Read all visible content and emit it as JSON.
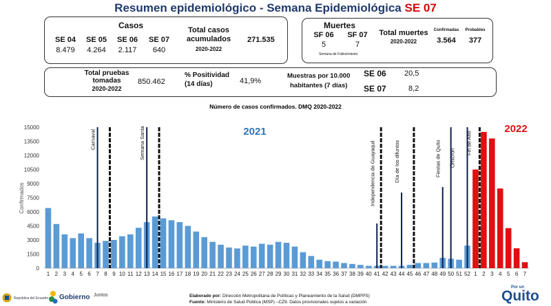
{
  "header": {
    "title_prefix": "Resumen epidemiológico - Semana Epidemiológica ",
    "title_week": "SE 07"
  },
  "cases": {
    "heading": "Casos",
    "weeks": [
      {
        "label": "SE 04",
        "value": "8.479"
      },
      {
        "label": "SE 05",
        "value": "4.264"
      },
      {
        "label": "SE 06",
        "value": "2.117"
      },
      {
        "label": "SE 07",
        "value": "640"
      }
    ],
    "total_label_1": "Total casos",
    "total_label_2": "acumulados",
    "total_period": "2020-2022",
    "total_value": "271.535"
  },
  "deaths": {
    "heading": "Muertes",
    "weeks": [
      {
        "label": "SF 06",
        "value": "5"
      },
      {
        "label": "SF 07",
        "value": "7"
      }
    ],
    "note": "Semana de Fallecimiento",
    "total_label": "Total muertes",
    "total_period": "2020-2022",
    "confirmed_label": "Confirmadas",
    "confirmed_value": "3.564",
    "probable_label": "Probables",
    "probable_value": "377"
  },
  "tests": {
    "label_1": "Total pruebas",
    "label_2": "tomadas",
    "period": "2020-2022",
    "value": "850.462",
    "positivity_label_1": "% Positividad",
    "positivity_label_2": "(14 días)",
    "positivity_value": "41,9%",
    "samples_label_1": "Muestras por 10.000",
    "samples_label_2": "habitantes (7 días)",
    "samples": [
      {
        "week": "SE 06",
        "value": "20,5"
      },
      {
        "week": "SE 07",
        "value": "8,2"
      }
    ]
  },
  "chart_data": {
    "type": "bar",
    "title": "Número de casos confirmados. DMQ 2020-2022",
    "ylabel": "Confirmados",
    "ylim": [
      0,
      15000
    ],
    "yticks": [
      "0",
      "1500",
      "3000",
      "4500",
      "6000",
      "7500",
      "9000",
      "10500",
      "12000",
      "13500",
      "15000"
    ],
    "year_labels": [
      {
        "text": "2021",
        "color": "#2e75b6"
      },
      {
        "text": "2022",
        "color": "#e01010"
      }
    ],
    "series": [
      {
        "color": "#5b9bd5",
        "categories": [
          "1",
          "2",
          "3",
          "4",
          "5",
          "6",
          "7",
          "8",
          "9",
          "10",
          "11",
          "12",
          "13",
          "14",
          "15",
          "16",
          "17",
          "18",
          "19",
          "20",
          "21",
          "22",
          "23",
          "24",
          "25",
          "26",
          "27",
          "28",
          "29",
          "30",
          "31",
          "32",
          "33",
          "34",
          "35",
          "36",
          "37",
          "38",
          "39",
          "40",
          "41",
          "42",
          "43",
          "44",
          "45",
          "46",
          "47",
          "48",
          "49",
          "50",
          "51",
          "52"
        ],
        "values": [
          6400,
          4700,
          3600,
          3200,
          3700,
          3200,
          2700,
          2900,
          3000,
          3400,
          3600,
          4300,
          4900,
          5500,
          5300,
          5100,
          4900,
          4500,
          3900,
          3300,
          2800,
          2500,
          2200,
          2100,
          2400,
          2300,
          2600,
          2500,
          2800,
          2700,
          2300,
          1700,
          1300,
          900,
          750,
          700,
          550,
          450,
          350,
          250,
          250,
          250,
          250,
          250,
          350,
          550,
          550,
          600,
          1100,
          1000,
          900,
          2400
        ]
      },
      {
        "color": "#e01010",
        "categories": [
          "1",
          "2",
          "3",
          "4",
          "5",
          "6",
          "7"
        ],
        "values": [
          10500,
          14500,
          13800,
          8479,
          4264,
          2117,
          640
        ]
      }
    ],
    "events": [
      "Carnaval",
      "Semana Santa",
      "Independencia de Guayaquil",
      "Día de los difuntos",
      "Fiestas de Quito",
      "Ómicron",
      "Fin de Año"
    ]
  },
  "footer": {
    "elaborado_label": "Elaborado por:",
    "elaborado_value": " Dirección Metropolitana de Políticas y Planeamiento de la Salud (DMPPS)",
    "fuente_label": "Fuente:",
    "fuente_value": " Ministerio de Salud Pública (MSP) –CZ9. Datos provisionales sujetos a variación",
    "logo_gobierno": "Gobierno",
    "logo_juntos": "Juntos",
    "logo_porun": "Por un",
    "logo_quito": "Quito",
    "logo_republica": "República del Ecuador"
  }
}
